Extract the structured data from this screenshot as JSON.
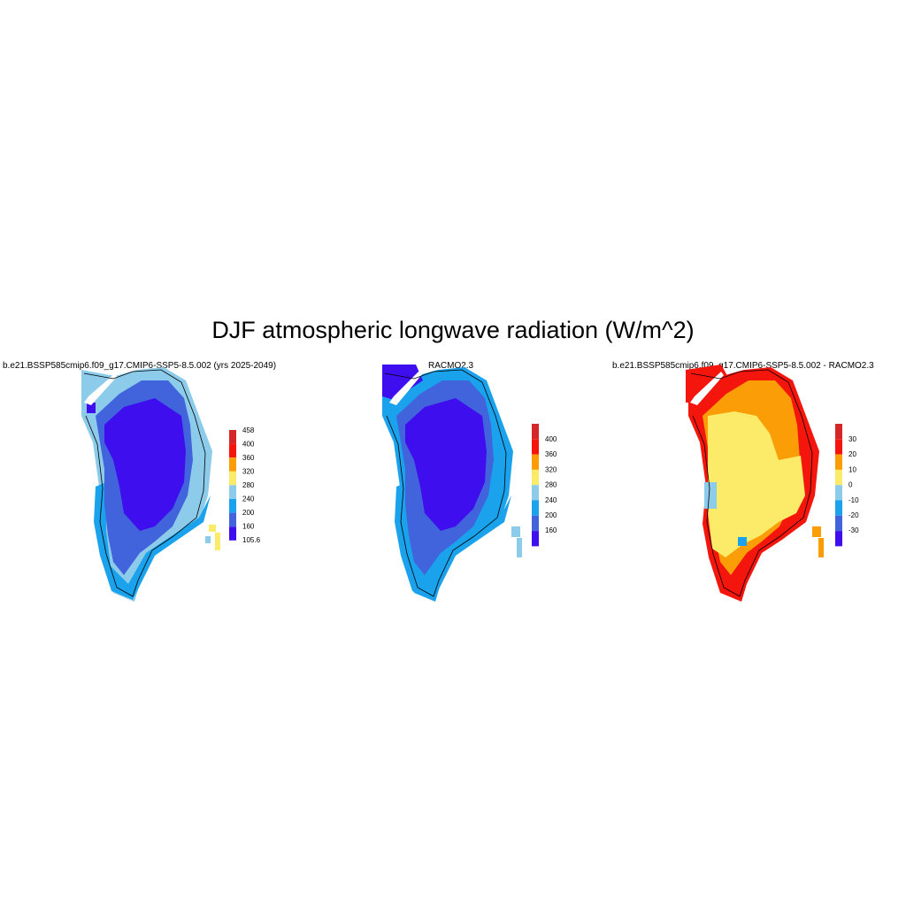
{
  "title": "DJF atmospheric longwave radiation (W/m^2)",
  "colors": {
    "c1": "#3f0eef",
    "c2": "#4164dc",
    "c3": "#1aa2ec",
    "c4": "#8ccbea",
    "c5": "#fceb69",
    "c6": "#fb9d06",
    "c7": "#f4150d",
    "c8": "#d52727",
    "outline": "#000000"
  },
  "panels": [
    {
      "title": "b.e21.BSSP585cmip6.f09_g17.CMIP6-SSP5-8.5.002 (yrs 2025-2049)",
      "colorbar_labels": [
        "458",
        "400",
        "360",
        "320",
        "280",
        "240",
        "200",
        "160",
        "105.6"
      ]
    },
    {
      "title": "RACMO2.3",
      "colorbar_labels": [
        "400",
        "360",
        "320",
        "280",
        "240",
        "200",
        "160"
      ]
    },
    {
      "title": "b.e21.BSSP585cmip6.f09_g17.CMIP6-SSP5-8.5.002 - RACMO2.3",
      "colorbar_labels": [
        "30",
        "20",
        "10",
        "0",
        "-10",
        "-20",
        "-30"
      ]
    }
  ]
}
